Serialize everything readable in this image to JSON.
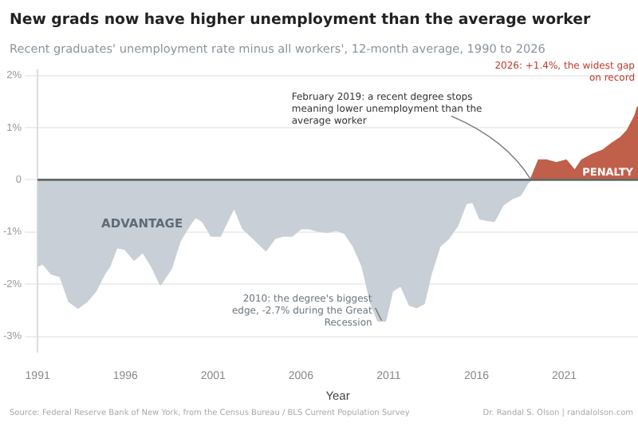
{
  "chart_data": {
    "type": "area",
    "title": "New grads now have higher unemployment than the average worker",
    "subtitle": "Recent graduates' unemployment rate minus all workers', 12-month average, 1990 to 2026",
    "xlabel": "Year",
    "xlim": [
      1991,
      2025.2
    ],
    "xticks": [
      1991,
      1996,
      2001,
      2006,
      2011,
      2016,
      2021
    ],
    "ylim": [
      -3.3,
      2.1
    ],
    "yticks": [
      {
        "value": -3,
        "label": "-3%"
      },
      {
        "value": -2,
        "label": "-2%"
      },
      {
        "value": -1,
        "label": "-1%"
      },
      {
        "value": 0,
        "label": "0"
      },
      {
        "value": 1,
        "label": "1%"
      },
      {
        "value": 2,
        "label": "2%"
      }
    ],
    "grid": "y",
    "legend": false,
    "series": [
      {
        "name": "ADVANTAGE",
        "color": "#c8cfd6",
        "x": [
          1991,
          1991.3,
          1991.8,
          1992.3,
          1992.8,
          1993.3,
          1993.8,
          1994.3,
          1994.8,
          1995.1,
          1995.5,
          1996,
          1996.5,
          1997,
          1997.5,
          1998,
          1998.6,
          1999.1,
          1999.7,
          2000,
          2000.4,
          2000.9,
          2001.4,
          2001.8,
          2002.2,
          2002.7,
          2003.3,
          2004,
          2004.5,
          2005,
          2005.5,
          2006,
          2006.5,
          2007,
          2007.5,
          2008,
          2008.5,
          2009,
          2009.5,
          2010,
          2010.4,
          2010.8,
          2011.2,
          2011.7,
          2012.2,
          2012.6,
          2013,
          2013.4,
          2013.9,
          2014.4,
          2014.9,
          2015.4,
          2015.8,
          2016.2,
          2016.6,
          2017,
          2017.5,
          2018,
          2018.5,
          2018.9,
          2019.1
        ],
        "values": [
          -1.65,
          -1.6,
          -1.8,
          -1.85,
          -2.33,
          -2.45,
          -2.33,
          -2.13,
          -1.8,
          -1.65,
          -1.29,
          -1.33,
          -1.53,
          -1.38,
          -1.65,
          -2.0,
          -1.7,
          -1.17,
          -0.84,
          -0.71,
          -0.79,
          -1.07,
          -1.07,
          -0.79,
          -0.52,
          -0.93,
          -1.12,
          -1.35,
          -1.12,
          -1.07,
          -1.07,
          -0.93,
          -0.93,
          -0.98,
          -1.0,
          -0.96,
          -1.02,
          -1.27,
          -1.65,
          -2.37,
          -2.7,
          -2.7,
          -2.13,
          -2.02,
          -2.4,
          -2.44,
          -2.37,
          -1.8,
          -1.27,
          -1.12,
          -0.88,
          -0.45,
          -0.42,
          -0.74,
          -0.77,
          -0.79,
          -0.48,
          -0.36,
          -0.29,
          -0.06,
          0
        ]
      },
      {
        "name": "PENALTY",
        "color": "#c0604a",
        "x": [
          2019.1,
          2019.55,
          2020,
          2020.55,
          2021.1,
          2021.6,
          2022,
          2022.6,
          2023.2,
          2023.75,
          2024.2,
          2024.6,
          2025.05,
          2025.2
        ],
        "values": [
          0,
          0.37,
          0.37,
          0.32,
          0.37,
          0.17,
          0.37,
          0.48,
          0.56,
          0.7,
          0.8,
          0.94,
          1.23,
          1.4
        ]
      }
    ],
    "ref_lines": [
      {
        "axis": "y",
        "value": 0,
        "color": "#666666"
      }
    ],
    "annotations": [
      {
        "text": "February 2019: a recent degree stops meaning lower unemployment than the average worker",
        "x": 2019.1,
        "y": 0
      },
      {
        "text": "2010: the degree's biggest edge, -2.7% during the Great Recession",
        "x": 2010.6,
        "y": -2.7
      },
      {
        "text": "2026: +1.4%, the widest gap on record",
        "x": 2025.2,
        "y": 1.4
      },
      "Source: Federal Reserve Bank of New York, from the Census Bureau / BLS Current Population Survey",
      "Dr. Randal S. Olson | randalolson.com"
    ]
  }
}
